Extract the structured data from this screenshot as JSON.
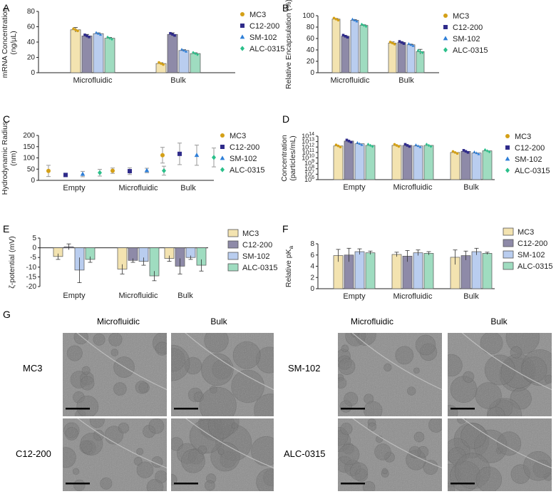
{
  "colors": {
    "MC3": "#f3e3b0",
    "C12-200": "#8e8aa8",
    "SM-102": "#b9cdef",
    "ALC-0315": "#9fdcc0",
    "MC3_marker": "#d4a017",
    "C12-200_marker": "#2f2b8a",
    "SM-102_marker": "#2e7fd8",
    "ALC-0315_marker": "#2bbf8a",
    "axis": "#222222",
    "micro_bg": "#8d8d8d"
  },
  "panel_letters": [
    "A",
    "B",
    "C",
    "D",
    "E",
    "F",
    "G"
  ],
  "legend_labels": [
    "MC3",
    "C12-200",
    "SM-102",
    "ALC-0315"
  ],
  "chart_data": [
    {
      "id": "A",
      "type": "bar",
      "title": "",
      "ylabel": "mRNA Concentration (ng/µL)",
      "ylabel_lines": [
        "mRNA Concentration",
        "(ng/µL)"
      ],
      "ylim": [
        0,
        80
      ],
      "yticks": [
        "0",
        "20",
        "40",
        "60",
        "80"
      ],
      "categories": [
        "Microfluidic",
        "Bulk"
      ],
      "series": [
        {
          "name": "MC3",
          "values": [
            56,
            12
          ],
          "errors": [
            3,
            1
          ]
        },
        {
          "name": "C12-200",
          "values": [
            48,
            50
          ],
          "errors": [
            2,
            2
          ]
        },
        {
          "name": "SM-102",
          "values": [
            51,
            29
          ],
          "errors": [
            1,
            1
          ]
        },
        {
          "name": "ALC-0315",
          "values": [
            45,
            25
          ],
          "errors": [
            1,
            1
          ]
        }
      ]
    },
    {
      "id": "B",
      "type": "bar",
      "title": "",
      "ylabel": "Relative Encapsulation (%)",
      "ylabel_lines": [
        "Relative Encapsulation (%)"
      ],
      "ylim": [
        0,
        100
      ],
      "yticks": [
        "0",
        "20",
        "40",
        "60",
        "80",
        "100"
      ],
      "categories": [
        "Microfluidic",
        "Bulk"
      ],
      "series": [
        {
          "name": "MC3",
          "values": [
            94,
            52
          ],
          "errors": [
            1,
            2
          ]
        },
        {
          "name": "C12-200",
          "values": [
            64,
            53
          ],
          "errors": [
            1,
            1
          ]
        },
        {
          "name": "SM-102",
          "values": [
            92,
            49
          ],
          "errors": [
            1,
            1
          ]
        },
        {
          "name": "ALC-0315",
          "values": [
            83,
            37
          ],
          "errors": [
            1,
            4
          ]
        }
      ]
    },
    {
      "id": "C",
      "type": "scatter",
      "title": "",
      "ylabel": "Hydrodynamic Radius (nm)",
      "ylabel_lines": [
        "Hydrodynamic Radius",
        "(nm)"
      ],
      "ylim": [
        0,
        200
      ],
      "yticks": [
        "0",
        "50",
        "100",
        "150",
        "200"
      ],
      "categories": [
        "Empty",
        "Microfluidic",
        "Bulk"
      ],
      "series": [
        {
          "name": "MC3",
          "values": [
            42,
            43,
            112
          ],
          "errors": [
            25,
            12,
            35
          ]
        },
        {
          "name": "C12-200",
          "values": [
            24,
            41,
            118
          ],
          "errors": [
            8,
            15,
            48
          ]
        },
        {
          "name": "SM-102",
          "values": [
            28,
            44,
            112
          ],
          "errors": [
            12,
            10,
            45
          ]
        },
        {
          "name": "ALC-0315",
          "values": [
            34,
            43,
            102
          ],
          "errors": [
            15,
            20,
            42
          ]
        }
      ]
    },
    {
      "id": "D",
      "type": "bar",
      "title": "",
      "ylabel": "Concentration (particles/mL)",
      "ylabel_lines": [
        "Concentration",
        "(particles/mL)"
      ],
      "yscale": "log",
      "ylim_exp": [
        6,
        14
      ],
      "yticks": [
        "10^6",
        "10^7",
        "10^8",
        "10^9",
        "10^10",
        "10^11",
        "10^12",
        "10^13",
        "10^14"
      ],
      "categories": [
        "Empty",
        "Microfluidic",
        "Bulk"
      ],
      "series": [
        {
          "name": "MC3",
          "values_exp": [
            12.2,
            12.3,
            11.0
          ]
        },
        {
          "name": "C12-200",
          "values_exp": [
            13.1,
            12.3,
            11.2
          ]
        },
        {
          "name": "SM-102",
          "values_exp": [
            12.6,
            12.2,
            10.9
          ]
        },
        {
          "name": "ALC-0315",
          "values_exp": [
            12.3,
            12.3,
            11.3
          ]
        }
      ]
    },
    {
      "id": "E",
      "type": "bar",
      "title": "",
      "ylabel": "ζ-potential (mV)",
      "ylabel_lines": [
        "ζ-potential (mV)"
      ],
      "ylim": [
        -20,
        5
      ],
      "yticks": [
        "5",
        "0",
        "-5",
        "-10",
        "-15",
        "-20"
      ],
      "categories": [
        "Empty",
        "Microfluidic",
        "Bulk"
      ],
      "series": [
        {
          "name": "MC3",
          "values": [
            -4.5,
            -11,
            -5.5
          ],
          "errors": [
            1.5,
            2.5,
            1.5
          ]
        },
        {
          "name": "C12-200",
          "values": [
            0.5,
            -6.5,
            -9.5
          ],
          "errors": [
            1.5,
            1,
            4
          ]
        },
        {
          "name": "SM-102",
          "values": [
            -11.5,
            -7,
            -5
          ],
          "errors": [
            6.5,
            2,
            1
          ]
        },
        {
          "name": "ALC-0315",
          "values": [
            -6,
            -14.5,
            -9
          ],
          "errors": [
            1.5,
            2.5,
            3
          ]
        }
      ]
    },
    {
      "id": "F",
      "type": "bar",
      "title": "",
      "ylabel": "Relative pKa",
      "ylabel_main": "Relative pK",
      "ylabel_sub": "a",
      "ylim": [
        0,
        8
      ],
      "yticks": [
        "0",
        "2",
        "4",
        "6",
        "8"
      ],
      "categories": [
        "Empty",
        "Microfluidic",
        "Bulk"
      ],
      "series": [
        {
          "name": "MC3",
          "values": [
            5.9,
            6.1,
            5.6
          ],
          "errors": [
            1.1,
            0.4,
            1.3
          ]
        },
        {
          "name": "C12-200",
          "values": [
            6.0,
            5.8,
            5.9
          ],
          "errors": [
            1.2,
            1.0,
            0.8
          ]
        },
        {
          "name": "SM-102",
          "values": [
            6.6,
            6.4,
            6.6
          ],
          "errors": [
            0.5,
            0.5,
            0.6
          ]
        },
        {
          "name": "ALC-0315",
          "values": [
            6.4,
            6.3,
            6.3
          ],
          "errors": [
            0.3,
            0.3,
            0.2
          ]
        }
      ]
    }
  ],
  "micrographs": {
    "col_headers": [
      "Microfluidic",
      "Bulk",
      "Microfluidic",
      "Bulk"
    ],
    "row_labels": [
      "MC3",
      "C12-200",
      "SM-102",
      "ALC-0315"
    ]
  }
}
